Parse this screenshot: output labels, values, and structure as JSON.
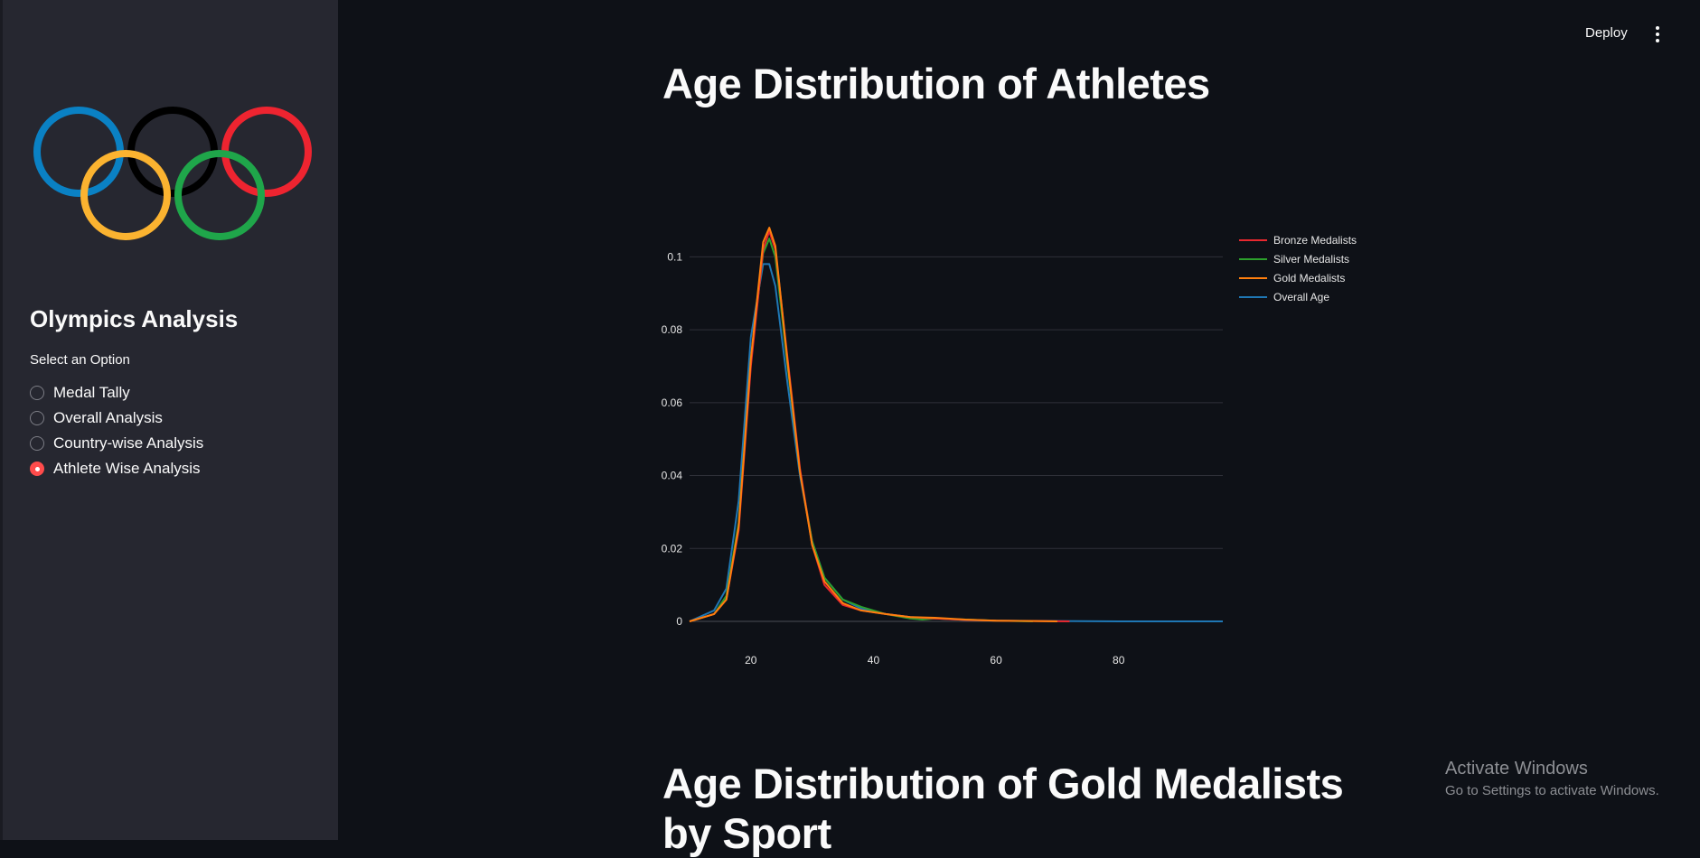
{
  "sidebar": {
    "title": "Olympics Analysis",
    "radio_label": "Select an Option",
    "options": [
      {
        "label": "Medal Tally",
        "selected": false
      },
      {
        "label": "Overall Analysis",
        "selected": false
      },
      {
        "label": "Country-wise Analysis",
        "selected": false
      },
      {
        "label": "Athlete Wise Analysis",
        "selected": true
      }
    ],
    "logo_colors": [
      "#0a81c4",
      "#000000",
      "#ee2430",
      "#fbb330",
      "#1fa64a"
    ]
  },
  "header": {
    "deploy_label": "Deploy",
    "menu_icon": "more-vertical-icon"
  },
  "main": {
    "heading1": "Age Distribution of Athletes",
    "heading2_line1": "Age Distribution of Gold Medalists",
    "heading2_line2": "by Sport"
  },
  "chart_data": {
    "type": "line",
    "title": "",
    "xlabel": "",
    "ylabel": "",
    "xlim": [
      10,
      97
    ],
    "ylim": [
      0,
      0.11
    ],
    "x_ticks": [
      "20",
      "40",
      "60",
      "80"
    ],
    "y_ticks": [
      "0",
      "0.02",
      "0.04",
      "0.06",
      "0.08",
      "0.1"
    ],
    "grid": true,
    "legend_position": "top-right",
    "series": [
      {
        "name": "Bronze Medalists",
        "color": "#e8282f",
        "x": [
          10,
          14,
          16,
          18,
          20,
          22,
          23,
          24,
          26,
          28,
          30,
          32,
          35,
          38,
          42,
          46,
          50,
          55,
          60,
          66,
          72
        ],
        "y": [
          0,
          0.002,
          0.006,
          0.025,
          0.07,
          0.102,
          0.107,
          0.102,
          0.072,
          0.042,
          0.021,
          0.01,
          0.0045,
          0.003,
          0.002,
          0.0012,
          0.0008,
          0.0004,
          0.0002,
          0.0001,
          0
        ]
      },
      {
        "name": "Silver Medalists",
        "color": "#2ca02c",
        "x": [
          10,
          14,
          16,
          18,
          20,
          22,
          23,
          24,
          26,
          28,
          30,
          32,
          35,
          38,
          42,
          46,
          48,
          50,
          55,
          60,
          66
        ],
        "y": [
          0,
          0.002,
          0.007,
          0.027,
          0.072,
          0.101,
          0.105,
          0.1,
          0.07,
          0.041,
          0.022,
          0.012,
          0.006,
          0.004,
          0.002,
          0.0008,
          0.0005,
          0.0008,
          0.0005,
          0.0002,
          0
        ]
      },
      {
        "name": "Gold Medalists",
        "color": "#ff7f0e",
        "x": [
          10,
          14,
          16,
          18,
          20,
          22,
          23,
          24,
          26,
          28,
          30,
          32,
          35,
          38,
          42,
          46,
          50,
          55,
          60,
          66,
          70
        ],
        "y": [
          0,
          0.002,
          0.006,
          0.026,
          0.072,
          0.104,
          0.108,
          0.103,
          0.071,
          0.041,
          0.021,
          0.011,
          0.005,
          0.003,
          0.002,
          0.0012,
          0.001,
          0.0005,
          0.0002,
          0.0001,
          0
        ]
      },
      {
        "name": "Overall Age",
        "color": "#1f77b4",
        "x": [
          10,
          14,
          16,
          18,
          20,
          22,
          23,
          24,
          26,
          28,
          30,
          32,
          35,
          38,
          42,
          46,
          50,
          55,
          60,
          70,
          80,
          90,
          97
        ],
        "y": [
          0,
          0.003,
          0.009,
          0.033,
          0.078,
          0.098,
          0.098,
          0.092,
          0.065,
          0.04,
          0.022,
          0.012,
          0.006,
          0.0035,
          0.002,
          0.0012,
          0.0008,
          0.0004,
          0.0002,
          0.0001,
          0,
          0,
          0
        ]
      }
    ]
  }
}
